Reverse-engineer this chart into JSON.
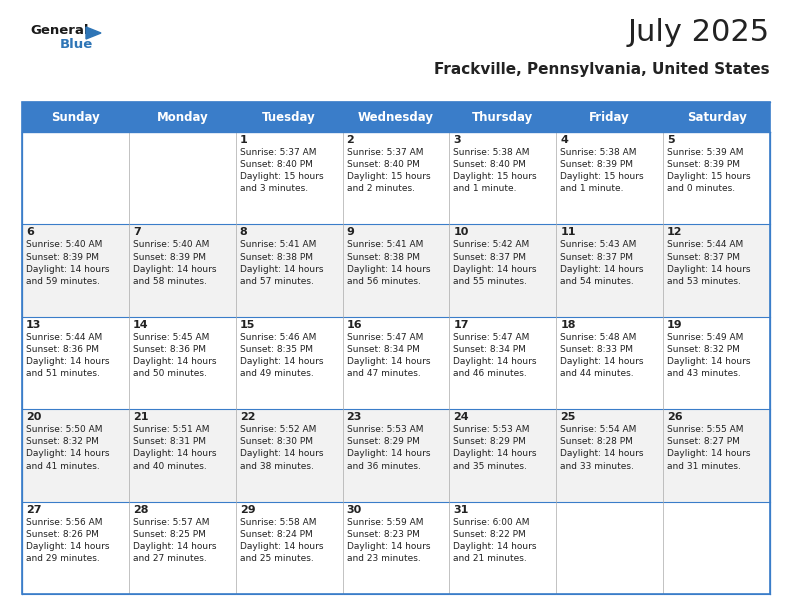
{
  "title": "July 2025",
  "subtitle": "Frackville, Pennsylvania, United States",
  "header_color": "#3A7DC9",
  "header_text_color": "#FFFFFF",
  "background_color": "#FFFFFF",
  "cell_bg_white": "#FFFFFF",
  "cell_bg_gray": "#F2F2F2",
  "border_color": "#3A7DC9",
  "inner_line_color": "#AAAAAA",
  "day_headers": [
    "Sunday",
    "Monday",
    "Tuesday",
    "Wednesday",
    "Thursday",
    "Friday",
    "Saturday"
  ],
  "calendar": [
    [
      "",
      "",
      "1\nSunrise: 5:37 AM\nSunset: 8:40 PM\nDaylight: 15 hours\nand 3 minutes.",
      "2\nSunrise: 5:37 AM\nSunset: 8:40 PM\nDaylight: 15 hours\nand 2 minutes.",
      "3\nSunrise: 5:38 AM\nSunset: 8:40 PM\nDaylight: 15 hours\nand 1 minute.",
      "4\nSunrise: 5:38 AM\nSunset: 8:39 PM\nDaylight: 15 hours\nand 1 minute.",
      "5\nSunrise: 5:39 AM\nSunset: 8:39 PM\nDaylight: 15 hours\nand 0 minutes."
    ],
    [
      "6\nSunrise: 5:40 AM\nSunset: 8:39 PM\nDaylight: 14 hours\nand 59 minutes.",
      "7\nSunrise: 5:40 AM\nSunset: 8:39 PM\nDaylight: 14 hours\nand 58 minutes.",
      "8\nSunrise: 5:41 AM\nSunset: 8:38 PM\nDaylight: 14 hours\nand 57 minutes.",
      "9\nSunrise: 5:41 AM\nSunset: 8:38 PM\nDaylight: 14 hours\nand 56 minutes.",
      "10\nSunrise: 5:42 AM\nSunset: 8:37 PM\nDaylight: 14 hours\nand 55 minutes.",
      "11\nSunrise: 5:43 AM\nSunset: 8:37 PM\nDaylight: 14 hours\nand 54 minutes.",
      "12\nSunrise: 5:44 AM\nSunset: 8:37 PM\nDaylight: 14 hours\nand 53 minutes."
    ],
    [
      "13\nSunrise: 5:44 AM\nSunset: 8:36 PM\nDaylight: 14 hours\nand 51 minutes.",
      "14\nSunrise: 5:45 AM\nSunset: 8:36 PM\nDaylight: 14 hours\nand 50 minutes.",
      "15\nSunrise: 5:46 AM\nSunset: 8:35 PM\nDaylight: 14 hours\nand 49 minutes.",
      "16\nSunrise: 5:47 AM\nSunset: 8:34 PM\nDaylight: 14 hours\nand 47 minutes.",
      "17\nSunrise: 5:47 AM\nSunset: 8:34 PM\nDaylight: 14 hours\nand 46 minutes.",
      "18\nSunrise: 5:48 AM\nSunset: 8:33 PM\nDaylight: 14 hours\nand 44 minutes.",
      "19\nSunrise: 5:49 AM\nSunset: 8:32 PM\nDaylight: 14 hours\nand 43 minutes."
    ],
    [
      "20\nSunrise: 5:50 AM\nSunset: 8:32 PM\nDaylight: 14 hours\nand 41 minutes.",
      "21\nSunrise: 5:51 AM\nSunset: 8:31 PM\nDaylight: 14 hours\nand 40 minutes.",
      "22\nSunrise: 5:52 AM\nSunset: 8:30 PM\nDaylight: 14 hours\nand 38 minutes.",
      "23\nSunrise: 5:53 AM\nSunset: 8:29 PM\nDaylight: 14 hours\nand 36 minutes.",
      "24\nSunrise: 5:53 AM\nSunset: 8:29 PM\nDaylight: 14 hours\nand 35 minutes.",
      "25\nSunrise: 5:54 AM\nSunset: 8:28 PM\nDaylight: 14 hours\nand 33 minutes.",
      "26\nSunrise: 5:55 AM\nSunset: 8:27 PM\nDaylight: 14 hours\nand 31 minutes."
    ],
    [
      "27\nSunrise: 5:56 AM\nSunset: 8:26 PM\nDaylight: 14 hours\nand 29 minutes.",
      "28\nSunrise: 5:57 AM\nSunset: 8:25 PM\nDaylight: 14 hours\nand 27 minutes.",
      "29\nSunrise: 5:58 AM\nSunset: 8:24 PM\nDaylight: 14 hours\nand 25 minutes.",
      "30\nSunrise: 5:59 AM\nSunset: 8:23 PM\nDaylight: 14 hours\nand 23 minutes.",
      "31\nSunrise: 6:00 AM\nSunset: 8:22 PM\nDaylight: 14 hours\nand 21 minutes.",
      "",
      ""
    ]
  ],
  "text_color": "#222222",
  "title_fontsize": 22,
  "subtitle_fontsize": 11,
  "header_fontsize": 8.5,
  "cell_day_fontsize": 8,
  "cell_info_fontsize": 6.5,
  "logo_fontsize": 9.5,
  "logo_blue_color": "#2E75B6",
  "logo_triangle_color": "#2E75B6"
}
